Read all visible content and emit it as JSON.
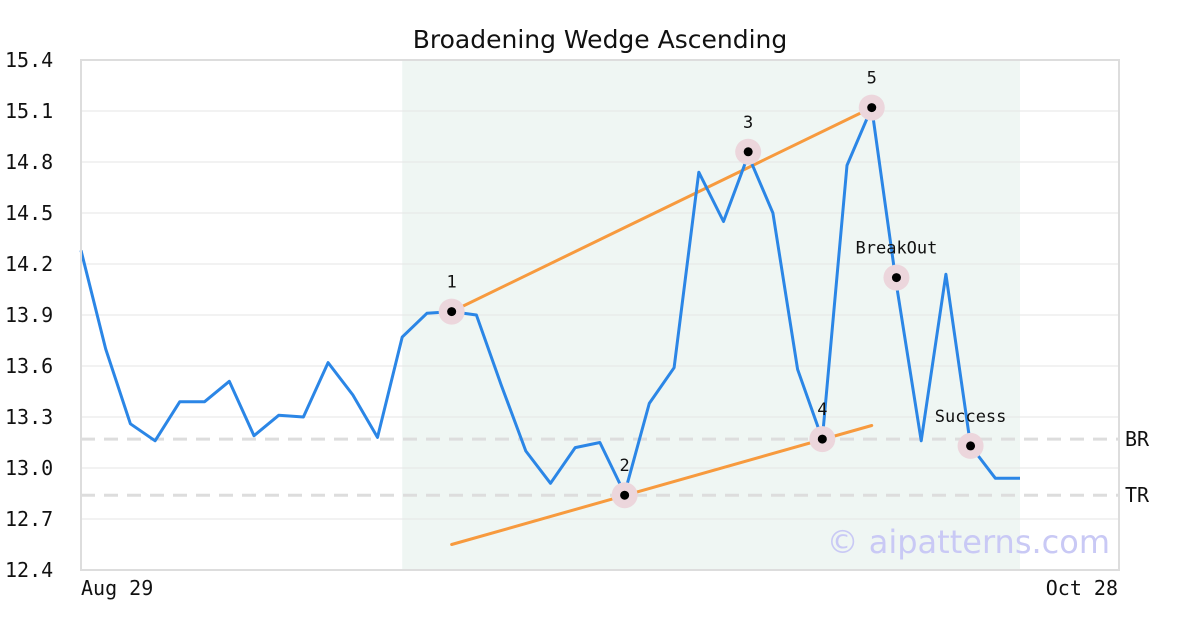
{
  "chart_data": {
    "type": "line",
    "title": "Broadening Wedge Ascending",
    "ylim": [
      12.4,
      15.4
    ],
    "yticks": [
      "15.4",
      "15.1",
      "14.8",
      "14.5",
      "14.2",
      "13.9",
      "13.6",
      "13.3",
      "13.0",
      "12.7",
      "12.4"
    ],
    "xtick_labels": {
      "start": "Aug 29",
      "end": "Oct 28"
    },
    "grid": true,
    "pattern_region": {
      "from_index": 13,
      "to_index": 38
    },
    "series": [
      {
        "values": [
          14.28,
          13.7,
          13.26,
          13.16,
          13.39,
          13.39,
          13.51,
          13.19,
          13.31,
          13.3,
          13.62,
          13.43,
          13.18,
          13.77,
          13.91,
          13.92,
          13.9,
          13.49,
          13.1,
          12.91,
          13.12,
          13.15,
          12.85,
          13.38,
          13.59,
          14.74,
          14.45,
          14.84,
          14.5,
          13.58,
          13.17,
          14.78,
          15.12,
          14.08,
          13.16,
          14.14,
          13.13,
          12.94,
          12.94
        ]
      }
    ],
    "trendlines": [
      {
        "from": [
          15,
          13.92
        ],
        "to": [
          32,
          15.12
        ]
      },
      {
        "from": [
          15,
          12.55
        ],
        "to": [
          32,
          13.25
        ]
      }
    ],
    "horizontal_lines": [
      {
        "label": "BR",
        "y": 13.17
      },
      {
        "label": "TR",
        "y": 12.84
      }
    ],
    "points": [
      {
        "label": "1",
        "x": 15,
        "y": 13.92
      },
      {
        "label": "2",
        "x": 22,
        "y": 12.84
      },
      {
        "label": "3",
        "x": 27,
        "y": 14.86
      },
      {
        "label": "4",
        "x": 30,
        "y": 13.17
      },
      {
        "label": "5",
        "x": 32,
        "y": 15.12
      },
      {
        "label": "BreakOut",
        "x": 33,
        "y": 14.12
      },
      {
        "label": "Success",
        "x": 36,
        "y": 13.13
      }
    ],
    "colors": {
      "price": "#2b86e6",
      "trend": "#f79a3e",
      "region": "#eff6f3",
      "level": "#dddddd",
      "marker_halo": "#ecd6dc"
    },
    "watermark": "© aipatterns.com"
  }
}
